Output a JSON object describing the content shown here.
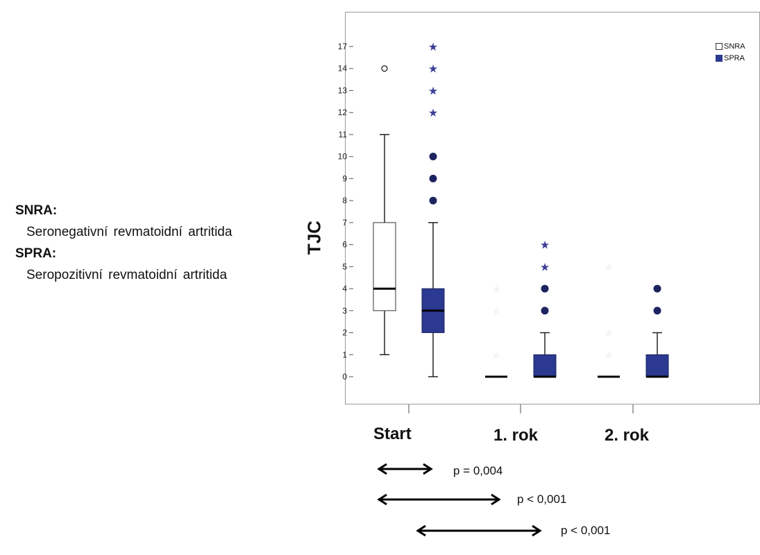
{
  "definitions": [
    {
      "term": "SNRA:",
      "text": "Seronegativní revmatoidní artritida"
    },
    {
      "term": "SPRA:",
      "text": "Seropozitivní revmatoidní artritida"
    }
  ],
  "comparisons": [
    {
      "from": "Start",
      "to": "Start",
      "label": "p = 0,004"
    },
    {
      "from": "Start",
      "to": "1. rok",
      "label": "p < 0,001"
    },
    {
      "from": "Start",
      "to": "2. rok",
      "label": "p < 0,001"
    }
  ],
  "colors": {
    "SNRA": "#ffffff",
    "SPRA": "#2b3990",
    "outline": "#222222",
    "frame": "#9a9a9a"
  },
  "chart_data": {
    "type": "box",
    "ylabel": "TJC",
    "xlabel": "",
    "title": "",
    "yticks": [
      0,
      1,
      2,
      3,
      4,
      5,
      6,
      7,
      8,
      9,
      10,
      11,
      12,
      13,
      14,
      17
    ],
    "ylim": [
      -1.3,
      18.5
    ],
    "categories": [
      "Start",
      "1. rok",
      "2. rok"
    ],
    "legend": {
      "position": "top-right",
      "entries": [
        "SNRA",
        "SPRA"
      ]
    },
    "series": [
      {
        "name": "SNRA",
        "boxes": [
          {
            "min": 1,
            "q1": 3,
            "median": 4,
            "q3": 7,
            "max": 11,
            "outliers": [
              14
            ],
            "extremes": []
          },
          {
            "min": 0,
            "q1": 0,
            "median": 0,
            "q3": 0,
            "max": 0,
            "outliers": [],
            "extremes": [
              1,
              3,
              4
            ]
          },
          {
            "min": 0,
            "q1": 0,
            "median": 0,
            "q3": 0,
            "max": 0,
            "outliers": [],
            "extremes": [
              1,
              2,
              5
            ]
          }
        ]
      },
      {
        "name": "SPRA",
        "boxes": [
          {
            "min": 0,
            "q1": 2,
            "median": 3,
            "q3": 4,
            "max": 7,
            "outliers": [
              8,
              9,
              10
            ],
            "extremes": [
              12,
              13,
              14,
              17
            ]
          },
          {
            "min": 0,
            "q1": 0,
            "median": 0,
            "q3": 1,
            "max": 2,
            "outliers": [
              3,
              4
            ],
            "extremes": [
              5,
              6
            ]
          },
          {
            "min": 0,
            "q1": 0,
            "median": 0,
            "q3": 1,
            "max": 2,
            "outliers": [
              3,
              4
            ],
            "extremes": []
          }
        ]
      }
    ]
  }
}
